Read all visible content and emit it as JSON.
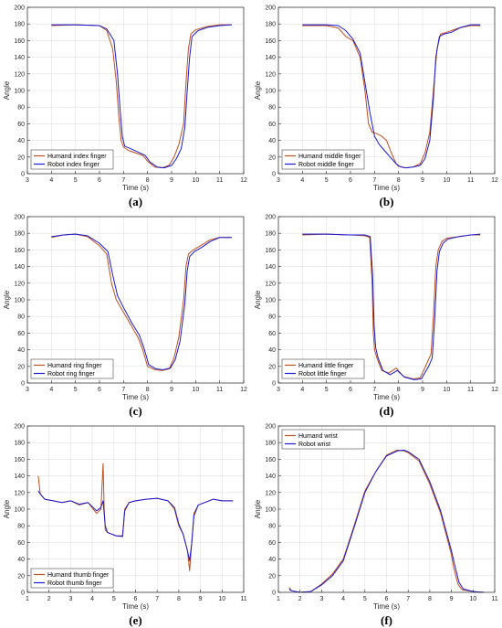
{
  "colors": {
    "human": "#c0501e",
    "robot": "#1a1ad8",
    "grid": "#e0e0e0",
    "axis": "#262626"
  },
  "chart_data": [
    {
      "type": "line",
      "caption": "(a)",
      "xlabel": "Time (s)",
      "ylabel": "Angle",
      "xlim": [
        3,
        12
      ],
      "ylim": [
        0,
        200
      ],
      "xticks": [
        3,
        4,
        5,
        6,
        7,
        8,
        9,
        10,
        11,
        12
      ],
      "yticks": [
        0,
        20,
        40,
        60,
        80,
        100,
        120,
        140,
        160,
        180,
        200
      ],
      "grid": true,
      "legend": "bottom-left",
      "series": [
        {
          "name": "Humand index finger",
          "color_key": "human",
          "x": [
            4.0,
            5.0,
            6.0,
            6.3,
            6.55,
            6.7,
            6.8,
            6.9,
            7.0,
            7.2,
            7.5,
            7.8,
            8.0,
            8.3,
            8.6,
            8.9,
            9.1,
            9.3,
            9.5,
            9.6,
            9.7,
            9.8,
            10.0,
            10.5,
            11.0,
            11.5
          ],
          "y": [
            178,
            179,
            178,
            172,
            150,
            110,
            70,
            40,
            32,
            28,
            25,
            22,
            15,
            8,
            7,
            10,
            20,
            35,
            60,
            110,
            150,
            168,
            173,
            177,
            179,
            179
          ]
        },
        {
          "name": "Robot index finger",
          "color_key": "robot",
          "x": [
            4.0,
            5.0,
            6.0,
            6.3,
            6.6,
            6.75,
            6.85,
            6.95,
            7.05,
            7.3,
            7.6,
            7.9,
            8.1,
            8.4,
            8.7,
            9.0,
            9.2,
            9.4,
            9.55,
            9.65,
            9.75,
            9.85,
            10.1,
            10.5,
            11.0,
            11.5
          ],
          "y": [
            179,
            179,
            178,
            174,
            160,
            120,
            80,
            45,
            33,
            30,
            26,
            22,
            14,
            8,
            7,
            10,
            18,
            30,
            55,
            100,
            140,
            165,
            172,
            176,
            178,
            179
          ]
        }
      ]
    },
    {
      "type": "line",
      "caption": "(b)",
      "xlabel": "Time (s)",
      "ylabel": "Angle",
      "xlim": [
        3,
        12
      ],
      "ylim": [
        0,
        200
      ],
      "xticks": [
        3,
        4,
        5,
        6,
        7,
        8,
        9,
        10,
        11,
        12
      ],
      "yticks": [
        0,
        20,
        40,
        60,
        80,
        100,
        120,
        140,
        160,
        180,
        200
      ],
      "grid": true,
      "legend": "bottom-left",
      "series": [
        {
          "name": "Humand middle finger",
          "color_key": "human",
          "x": [
            4.0,
            5.0,
            5.5,
            5.8,
            6.1,
            6.4,
            6.6,
            6.75,
            6.9,
            7.1,
            7.3,
            7.5,
            7.7,
            7.9,
            8.1,
            8.3,
            8.6,
            8.9,
            9.1,
            9.3,
            9.45,
            9.6,
            9.75,
            10.0,
            10.5,
            11.0,
            11.4
          ],
          "y": [
            178,
            178,
            175,
            165,
            160,
            140,
            100,
            60,
            50,
            48,
            45,
            40,
            25,
            12,
            8,
            7,
            8,
            12,
            25,
            50,
            100,
            150,
            168,
            170,
            175,
            178,
            178
          ]
        },
        {
          "name": "Robot middle finger",
          "color_key": "robot",
          "x": [
            4.0,
            5.0,
            5.5,
            5.8,
            6.1,
            6.4,
            6.6,
            6.8,
            7.0,
            7.2,
            7.5,
            7.8,
            8.0,
            8.3,
            8.6,
            8.9,
            9.1,
            9.3,
            9.45,
            9.55,
            9.7,
            9.9,
            10.2,
            10.6,
            11.0,
            11.4
          ],
          "y": [
            179,
            179,
            178,
            172,
            162,
            145,
            110,
            75,
            45,
            35,
            25,
            15,
            9,
            7,
            8,
            10,
            18,
            40,
            90,
            140,
            165,
            168,
            170,
            176,
            179,
            179
          ]
        }
      ]
    },
    {
      "type": "line",
      "caption": "(c)",
      "xlabel": "Time (s)",
      "ylabel": "Angle",
      "xlim": [
        3,
        12
      ],
      "ylim": [
        0,
        200
      ],
      "xticks": [
        3,
        4,
        5,
        6,
        7,
        8,
        9,
        10,
        11,
        12
      ],
      "yticks": [
        0,
        20,
        40,
        60,
        80,
        100,
        120,
        140,
        160,
        180,
        200
      ],
      "grid": true,
      "legend": "bottom-left",
      "series": [
        {
          "name": "Humand ring finger",
          "color_key": "human",
          "x": [
            4.0,
            4.5,
            5.0,
            5.5,
            6.0,
            6.3,
            6.5,
            6.7,
            7.0,
            7.3,
            7.6,
            7.8,
            8.0,
            8.3,
            8.6,
            8.9,
            9.1,
            9.3,
            9.5,
            9.6,
            9.7,
            9.9,
            10.2,
            10.6,
            11.0,
            11.5
          ],
          "y": [
            175,
            178,
            179,
            176,
            165,
            155,
            120,
            100,
            85,
            70,
            55,
            40,
            20,
            16,
            15,
            17,
            30,
            55,
            100,
            140,
            155,
            160,
            165,
            172,
            175,
            175
          ]
        },
        {
          "name": "Robot ring finger",
          "color_key": "robot",
          "x": [
            4.0,
            4.5,
            5.0,
            5.5,
            6.0,
            6.35,
            6.55,
            6.75,
            7.05,
            7.35,
            7.65,
            7.85,
            8.05,
            8.35,
            8.65,
            8.95,
            9.15,
            9.35,
            9.55,
            9.65,
            9.75,
            9.95,
            10.25,
            10.6,
            11.0,
            11.5
          ],
          "y": [
            176,
            178,
            179,
            177,
            168,
            158,
            130,
            105,
            88,
            72,
            58,
            42,
            22,
            17,
            16,
            18,
            28,
            50,
            95,
            135,
            152,
            158,
            163,
            170,
            175,
            175
          ]
        }
      ]
    },
    {
      "type": "line",
      "caption": "(d)",
      "xlabel": "Time (s)",
      "ylabel": "Angle",
      "xlim": [
        3,
        12
      ],
      "ylim": [
        0,
        200
      ],
      "xticks": [
        3,
        4,
        5,
        6,
        7,
        8,
        9,
        10,
        11,
        12
      ],
      "yticks": [
        0,
        20,
        40,
        60,
        80,
        100,
        120,
        140,
        160,
        180,
        200
      ],
      "grid": true,
      "legend": "bottom-left",
      "series": [
        {
          "name": "Humand little finger",
          "color_key": "human",
          "x": [
            4.0,
            5.0,
            6.0,
            6.6,
            6.8,
            6.9,
            6.95,
            7.0,
            7.1,
            7.3,
            7.6,
            7.9,
            8.2,
            8.6,
            8.9,
            9.2,
            9.35,
            9.45,
            9.55,
            9.65,
            9.8,
            10.0,
            10.5,
            11.0,
            11.4
          ],
          "y": [
            178,
            179,
            178,
            177,
            175,
            120,
            60,
            40,
            30,
            15,
            12,
            18,
            8,
            5,
            6,
            25,
            35,
            80,
            140,
            160,
            170,
            174,
            176,
            178,
            178
          ]
        },
        {
          "name": "Robot little finger",
          "color_key": "robot",
          "x": [
            4.0,
            5.0,
            6.0,
            6.6,
            6.82,
            6.92,
            6.98,
            7.05,
            7.15,
            7.35,
            7.65,
            7.95,
            8.25,
            8.65,
            8.95,
            9.25,
            9.4,
            9.5,
            9.6,
            9.7,
            9.85,
            10.05,
            10.5,
            11.0,
            11.4
          ],
          "y": [
            179,
            179,
            178,
            178,
            176,
            130,
            70,
            42,
            30,
            15,
            10,
            15,
            7,
            4,
            5,
            20,
            30,
            75,
            135,
            158,
            168,
            173,
            176,
            178,
            179
          ]
        }
      ]
    },
    {
      "type": "line",
      "caption": "(e)",
      "xlabel": "Time (s)",
      "ylabel": "Angle",
      "xlim": [
        1,
        11
      ],
      "ylim": [
        0,
        200
      ],
      "xticks": [
        1,
        2,
        3,
        4,
        5,
        6,
        7,
        8,
        9,
        10,
        11
      ],
      "yticks": [
        0,
        20,
        40,
        60,
        80,
        100,
        120,
        140,
        160,
        180,
        200
      ],
      "grid": true,
      "legend": "bottom-left",
      "series": [
        {
          "name": "Humand thumb finger",
          "color_key": "human",
          "x": [
            1.5,
            1.6,
            1.8,
            2.2,
            2.6,
            3.0,
            3.4,
            3.8,
            4.2,
            4.4,
            4.5,
            4.55,
            4.6,
            4.7,
            4.9,
            5.1,
            5.4,
            5.5,
            5.7,
            6.0,
            6.5,
            7.0,
            7.5,
            7.8,
            8.0,
            8.2,
            8.4,
            8.5,
            8.6,
            8.7,
            8.9,
            9.2,
            9.6,
            10.0,
            10.5
          ],
          "y": [
            140,
            118,
            112,
            110,
            108,
            110,
            105,
            108,
            95,
            100,
            155,
            100,
            75,
            72,
            70,
            68,
            68,
            100,
            108,
            110,
            112,
            113,
            110,
            100,
            80,
            70,
            50,
            26,
            60,
            95,
            105,
            108,
            112,
            110,
            110
          ]
        },
        {
          "name": "Robot thumb finger",
          "color_key": "robot",
          "x": [
            1.5,
            1.6,
            1.8,
            2.2,
            2.6,
            3.0,
            3.4,
            3.8,
            4.2,
            4.4,
            4.5,
            4.6,
            4.7,
            4.9,
            5.1,
            5.4,
            5.5,
            5.7,
            6.0,
            6.5,
            7.0,
            7.5,
            7.8,
            8.0,
            8.2,
            8.4,
            8.5,
            8.6,
            8.7,
            8.9,
            9.2,
            9.6,
            10.0,
            10.5
          ],
          "y": [
            122,
            118,
            112,
            110,
            108,
            110,
            106,
            108,
            98,
            102,
            110,
            80,
            72,
            70,
            68,
            67,
            98,
            108,
            110,
            112,
            113,
            110,
            102,
            82,
            70,
            50,
            38,
            60,
            92,
            105,
            108,
            112,
            110,
            110
          ]
        }
      ]
    },
    {
      "type": "line",
      "caption": "(f)",
      "xlabel": "Time (s)",
      "ylabel": "Angle",
      "xlim": [
        1,
        11
      ],
      "ylim": [
        0,
        200
      ],
      "xticks": [
        1,
        2,
        3,
        4,
        5,
        6,
        7,
        8,
        9,
        10,
        11
      ],
      "yticks": [
        0,
        20,
        40,
        60,
        80,
        100,
        120,
        140,
        160,
        180,
        200
      ],
      "grid": true,
      "legend": "top-left",
      "series": [
        {
          "name": "Humand wrist",
          "color_key": "human",
          "x": [
            1.5,
            1.6,
            2.0,
            2.5,
            3.0,
            3.5,
            4.0,
            4.5,
            5.0,
            5.5,
            6.0,
            6.5,
            6.8,
            7.0,
            7.5,
            8.0,
            8.5,
            9.0,
            9.1,
            9.3,
            9.5,
            10.0,
            10.5
          ],
          "y": [
            6,
            2,
            0,
            1,
            10,
            22,
            40,
            80,
            122,
            145,
            165,
            171,
            170,
            168,
            158,
            130,
            95,
            45,
            30,
            10,
            3,
            1,
            0
          ]
        },
        {
          "name": "Robot wrist",
          "color_key": "robot",
          "x": [
            1.5,
            1.6,
            2.0,
            2.5,
            3.0,
            3.5,
            4.0,
            4.5,
            5.0,
            5.5,
            6.0,
            6.5,
            6.8,
            7.0,
            7.5,
            8.0,
            8.5,
            9.0,
            9.15,
            9.35,
            9.55,
            10.0,
            10.5
          ],
          "y": [
            4,
            2,
            0,
            1,
            9,
            20,
            38,
            78,
            120,
            145,
            164,
            170,
            171,
            169,
            160,
            133,
            98,
            50,
            33,
            12,
            4,
            1,
            0
          ]
        }
      ]
    }
  ]
}
